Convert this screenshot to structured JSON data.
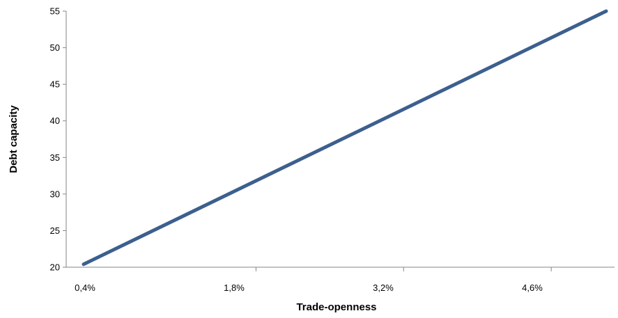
{
  "chart_data": {
    "type": "line",
    "title": "",
    "xlabel": "Trade-openness",
    "ylabel": "Debt capacity",
    "x_tick_labels": [
      "0,4%",
      "1,8%",
      "3,2%",
      "4,6%"
    ],
    "x_tick_values": [
      0.4,
      1.8,
      3.2,
      4.6
    ],
    "y_ticks": [
      20,
      25,
      30,
      35,
      40,
      45,
      50,
      55
    ],
    "xlim": [
      0,
      5.2
    ],
    "ylim": [
      20,
      55
    ],
    "grid": false,
    "legend": "none",
    "series": [
      {
        "color": "#3c5f8e",
        "x": [
          0.4,
          5.2
        ],
        "y": [
          20.4,
          55
        ]
      }
    ]
  }
}
